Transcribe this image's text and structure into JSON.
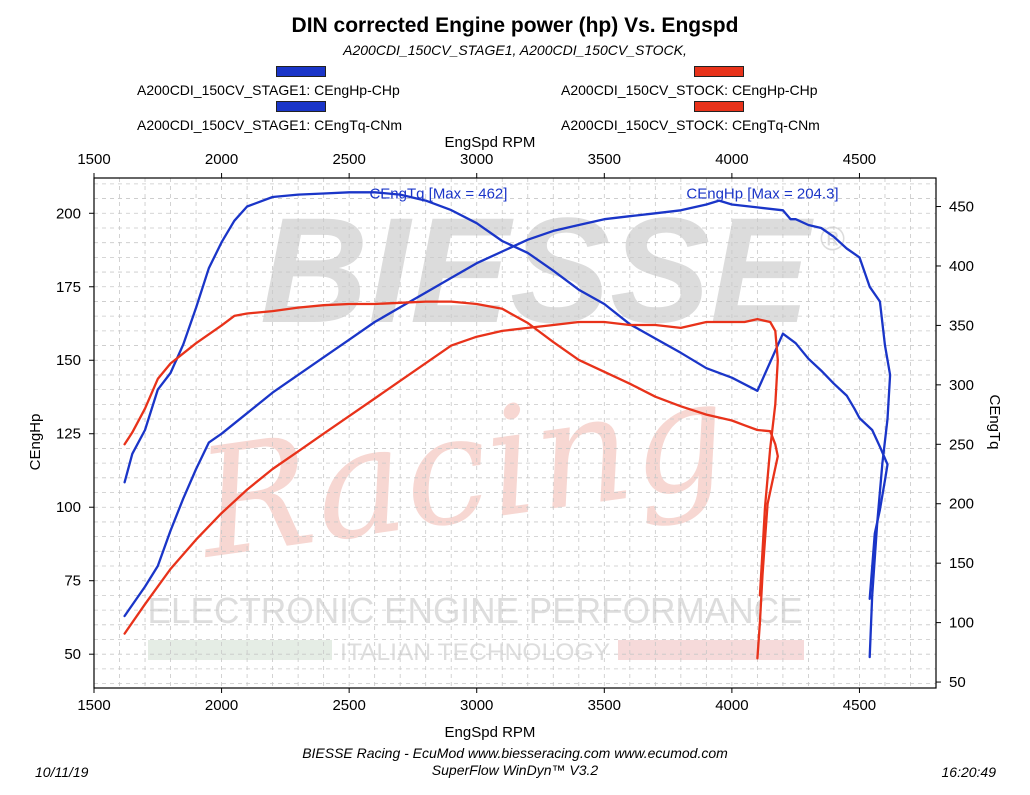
{
  "header": {
    "title": "DIN corrected Engine power (hp) Vs. Engspd",
    "subtitle": "A200CDI_150CV_STAGE1, A200CDI_150CV_STOCK,"
  },
  "legend": [
    {
      "label": "A200CDI_150CV_STAGE1: CEngHp-CHp",
      "color": "#1a35c8"
    },
    {
      "label": "A200CDI_150CV_STAGE1: CEngTq-CNm",
      "color": "#1a35c8"
    },
    {
      "label": "A200CDI_150CV_STOCK: CEngHp-CHp",
      "color": "#e8321a"
    },
    {
      "label": "A200CDI_150CV_STOCK: CEngTq-CNm",
      "color": "#e8321a"
    }
  ],
  "watermark": {
    "brand": "BIESSE",
    "script": "Racing",
    "line1": "ELECTRONIC ENGINE PERFORMANCE",
    "line2": "ITALIAN TECHNOLOGY"
  },
  "footer": {
    "credit": "BIESSE Racing - EcuMod www.biesseracing.com www.ecumod.com",
    "software": "SuperFlow WinDyn™ V3.2",
    "date": "10/11/19",
    "time": "16:20:49"
  },
  "chart_data": {
    "type": "line",
    "title": "DIN corrected Engine power (hp) Vs. Engspd",
    "xlabel": "EngSpd RPM",
    "x2label": "EngSpd RPM",
    "ylabel": "CEngHp",
    "y2label": "CEngTq",
    "xlim": [
      1500,
      4800
    ],
    "ylim": [
      38.5,
      212
    ],
    "y2lim": [
      45,
      474
    ],
    "xticks": [
      1500,
      2000,
      2500,
      3000,
      3500,
      4000,
      4500
    ],
    "yticks": [
      50,
      75,
      100,
      125,
      150,
      175,
      200
    ],
    "y2ticks": [
      50,
      100,
      150,
      200,
      250,
      300,
      350,
      400,
      450
    ],
    "grid": true,
    "annotations": [
      {
        "text": "CEngTq [Max = 462]",
        "x": 2850,
        "y": 204,
        "color": "#1a35c8"
      },
      {
        "text": "CEngHp [Max = 204.3]",
        "x": 4120,
        "y": 204,
        "color": "#1a35c8"
      }
    ],
    "series": [
      {
        "name": "A200CDI_150CV_STAGE1: CEngHp-CHp",
        "axis": "left",
        "color": "#1a35c8",
        "x": [
          1620,
          1700,
          1750,
          1800,
          1850,
          1900,
          1950,
          2000,
          2100,
          2200,
          2300,
          2400,
          2500,
          2600,
          2700,
          2800,
          2900,
          3000,
          3100,
          3200,
          3300,
          3400,
          3500,
          3600,
          3700,
          3800,
          3900,
          3950,
          4000,
          4100,
          4200,
          4230,
          4250,
          4300,
          4350,
          4400,
          4450,
          4500,
          4540,
          4580,
          4600,
          4620,
          4610,
          4590,
          4570,
          4550,
          4540
        ],
        "y": [
          63,
          73,
          80,
          92,
          103,
          113,
          122,
          125,
          132,
          139,
          145,
          151,
          157,
          163,
          168,
          173,
          178,
          183,
          187,
          191,
          194,
          196,
          198,
          199,
          200,
          201,
          203,
          204.3,
          203,
          202,
          201,
          198,
          198,
          196,
          195,
          192,
          188,
          185,
          175,
          170,
          155,
          145,
          130,
          115,
          95,
          70,
          49
        ]
      },
      {
        "name": "A200CDI_150CV_STAGE1: CEngTq-CNm",
        "axis": "right",
        "color": "#1a35c8",
        "x": [
          1620,
          1650,
          1700,
          1750,
          1800,
          1850,
          1900,
          1950,
          2000,
          2050,
          2100,
          2200,
          2300,
          2400,
          2500,
          2600,
          2700,
          2800,
          2900,
          3000,
          3100,
          3200,
          3300,
          3400,
          3500,
          3600,
          3700,
          3800,
          3900,
          4000,
          4100,
          4200,
          4250,
          4300,
          4350,
          4400,
          4450,
          4480,
          4500,
          4550,
          4580,
          4600,
          4610,
          4600,
          4580,
          4560,
          4540
        ],
        "y": [
          218,
          242,
          262,
          296,
          310,
          334,
          365,
          398,
          420,
          438,
          450,
          458,
          460,
          461,
          462,
          462,
          460,
          455,
          447,
          436,
          421,
          411,
          396,
          380,
          368,
          351,
          339,
          327,
          314,
          306,
          295,
          343,
          335,
          322,
          312,
          301,
          291,
          280,
          272,
          262,
          248,
          238,
          233,
          220,
          195,
          175,
          120
        ]
      },
      {
        "name": "A200CDI_150CV_STOCK: CEngHp-CHp",
        "axis": "left",
        "color": "#e8321a",
        "x": [
          1620,
          1700,
          1800,
          1900,
          2000,
          2100,
          2200,
          2300,
          2400,
          2500,
          2600,
          2700,
          2800,
          2900,
          3000,
          3100,
          3200,
          3300,
          3400,
          3500,
          3600,
          3700,
          3800,
          3900,
          4000,
          4050,
          4100,
          4150,
          4170,
          4180,
          4170,
          4150,
          4140,
          4130,
          4120,
          4110
        ],
        "y": [
          57,
          67,
          79,
          89,
          98,
          106,
          113,
          119,
          125,
          131,
          137,
          143,
          149,
          155,
          158,
          160,
          161,
          162,
          163,
          163,
          162,
          162,
          161,
          163,
          163,
          163,
          164,
          163,
          160,
          150,
          135,
          120,
          110,
          100,
          85,
          70
        ]
      },
      {
        "name": "A200CDI_150CV_STOCK: CEngTq-CNm",
        "axis": "right",
        "color": "#e8321a",
        "x": [
          1620,
          1650,
          1700,
          1750,
          1800,
          1900,
          2000,
          2050,
          2100,
          2200,
          2300,
          2400,
          2500,
          2600,
          2700,
          2800,
          2900,
          3000,
          3100,
          3200,
          3300,
          3400,
          3500,
          3600,
          3700,
          3800,
          3900,
          4000,
          4050,
          4100,
          4150,
          4170,
          4180,
          4160,
          4140,
          4130,
          4120,
          4110,
          4100
        ],
        "y": [
          250,
          260,
          280,
          305,
          318,
          335,
          350,
          358,
          360,
          362,
          365,
          367,
          368,
          368,
          369,
          370,
          370,
          368,
          364,
          352,
          336,
          321,
          311,
          301,
          290,
          282,
          275,
          270,
          266,
          262,
          261,
          250,
          240,
          220,
          200,
          170,
          140,
          100,
          70
        ]
      }
    ]
  }
}
